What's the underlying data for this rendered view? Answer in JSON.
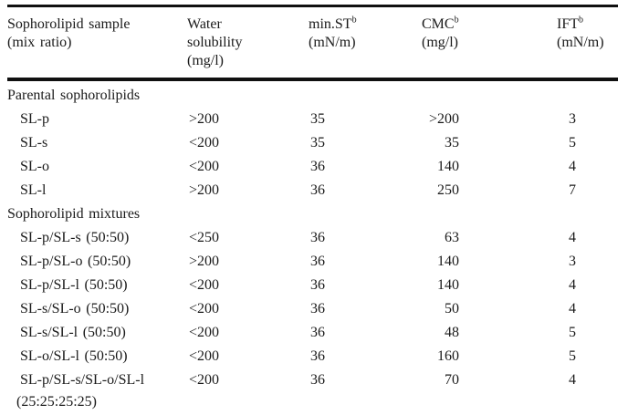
{
  "page": {
    "background_color": "#ffffff",
    "text_color": "#1a1a1a",
    "rule_color": "#101010"
  },
  "table": {
    "header": {
      "sample": {
        "line1": "Sophorolipid sample",
        "line2": "(mix ratio)"
      },
      "solubility": {
        "line1": "Water",
        "line2": "solubility",
        "line3": "(mg/l)"
      },
      "min_st": {
        "name": "min.ST",
        "sup": "b",
        "unit": "(mN/m)"
      },
      "cmc": {
        "name": "CMC",
        "sup": "b",
        "unit": "(mg/l)"
      },
      "ift": {
        "name": "IFT",
        "sup": "b",
        "unit": "(mN/m)"
      }
    },
    "sections": [
      {
        "title": "Parental sophorolipids",
        "rows": [
          {
            "sample": "SL-p",
            "solubility": ">200",
            "min_st": "35",
            "cmc": ">200",
            "ift": "3"
          },
          {
            "sample": "SL-s",
            "solubility": "<200",
            "min_st": "35",
            "cmc": "35",
            "ift": "5"
          },
          {
            "sample": "SL-o",
            "solubility": "<200",
            "min_st": "36",
            "cmc": "140",
            "ift": "4"
          },
          {
            "sample": "SL-l",
            "solubility": ">200",
            "min_st": "36",
            "cmc": "250",
            "ift": "7"
          }
        ]
      },
      {
        "title": "Sophorolipid mixtures",
        "rows": [
          {
            "sample": "SL-p/SL-s (50:50)",
            "solubility": "<250",
            "min_st": "36",
            "cmc": "63",
            "ift": "4"
          },
          {
            "sample": "SL-p/SL-o (50:50)",
            "solubility": ">200",
            "min_st": "36",
            "cmc": "140",
            "ift": "3"
          },
          {
            "sample": "SL-p/SL-l (50:50)",
            "solubility": "<200",
            "min_st": "36",
            "cmc": "140",
            "ift": "4"
          },
          {
            "sample": "SL-s/SL-o (50:50)",
            "solubility": "<200",
            "min_st": "36",
            "cmc": "50",
            "ift": "4"
          },
          {
            "sample": "SL-s/SL-l (50:50)",
            "solubility": "<200",
            "min_st": "36",
            "cmc": "48",
            "ift": "5"
          },
          {
            "sample": "SL-o/SL-l (50:50)",
            "solubility": "<200",
            "min_st": "36",
            "cmc": "160",
            "ift": "5"
          },
          {
            "sample": "SL-p/SL-s/SL-o/SL-l",
            "sample_line2": "(25:25:25:25)",
            "solubility": "<200",
            "min_st": "36",
            "cmc": "70",
            "ift": "4"
          }
        ]
      }
    ]
  }
}
